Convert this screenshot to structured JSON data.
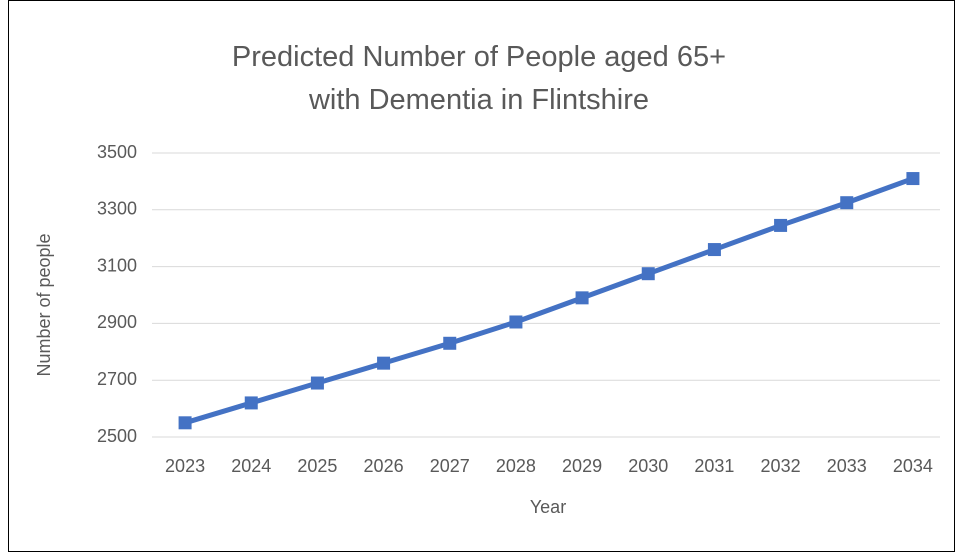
{
  "chart_data": {
    "type": "line",
    "title": "Predicted Number of People aged 65+\nwith Dementia in Flintshire",
    "x_label": "Year",
    "y_label": "Number of people",
    "categories": [
      "2023",
      "2024",
      "2025",
      "2026",
      "2027",
      "2028",
      "2029",
      "2030",
      "2031",
      "2032",
      "2033",
      "2034"
    ],
    "series": [
      {
        "name": "Number of people",
        "color": "#4472c4",
        "values": [
          2550,
          2620,
          2690,
          2760,
          2830,
          2905,
          2990,
          3075,
          3160,
          3245,
          3325,
          3410
        ]
      }
    ],
    "ylim": [
      2500,
      3500
    ],
    "yticks": [
      2500,
      2700,
      2900,
      3100,
      3300,
      3500
    ],
    "grid": true
  }
}
